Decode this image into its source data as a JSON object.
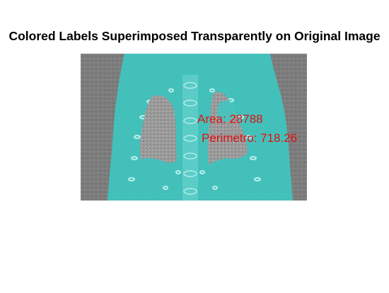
{
  "figure": {
    "title": "Colored Labels Superimposed Transparently on Original Image"
  },
  "image": {
    "content": "ct-scan-with-segmented-label-overlay",
    "background_color": "#7f7f7f",
    "overlay_color": "#3ec8c2"
  },
  "annotations": {
    "area": "Area: 28788",
    "perimeter": " Perimetro: 718.26",
    "color": "#e01010"
  }
}
